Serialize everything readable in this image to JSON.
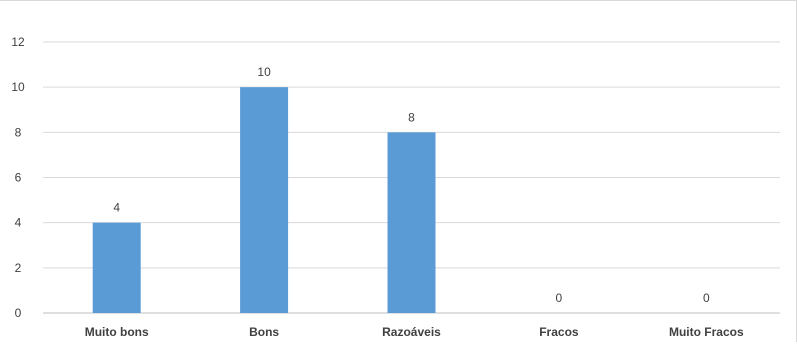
{
  "chart_data": {
    "type": "bar",
    "title": "",
    "xlabel": "",
    "ylabel": "",
    "categories": [
      "Muito bons",
      "Bons",
      "Razoáveis",
      "Fracos",
      "Muito Fracos"
    ],
    "values": [
      4,
      10,
      8,
      0,
      0
    ],
    "data_labels": [
      "4",
      "10",
      "8",
      "0",
      "0"
    ],
    "ylim": [
      0,
      12
    ],
    "yticks": [
      "0",
      "2",
      "4",
      "6",
      "8",
      "10",
      "12"
    ],
    "grid": true,
    "legend": "none",
    "colors": {
      "bar": "#5b9bd5",
      "grid": "#d9d9d9",
      "axis": "#bfbfbf",
      "tick_text": "#404040",
      "label_text": "#404040"
    }
  }
}
